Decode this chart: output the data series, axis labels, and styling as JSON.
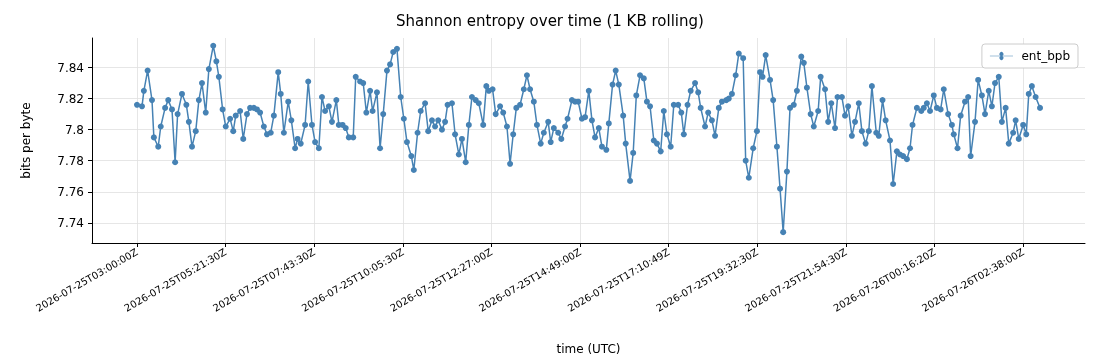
{
  "chart_data": {
    "type": "line",
    "title": "Shannon entropy over time (1 KB rolling)",
    "xlabel": "time (UTC)",
    "ylabel": "bits per byte",
    "x": [
      "2026-07-25T03:00",
      "2026-07-25T03:08",
      "2026-07-25T03:11",
      "2026-07-25T03:17",
      "2026-07-25T03:24",
      "2026-07-25T03:27",
      "2026-07-25T03:34",
      "2026-07-25T03:38",
      "2026-07-25T03:45",
      "2026-07-25T03:50",
      "2026-07-25T03:56",
      "2026-07-25T04:01",
      "2026-07-25T04:05",
      "2026-07-25T04:12",
      "2026-07-25T04:19",
      "2026-07-25T04:23",
      "2026-07-25T04:28",
      "2026-07-25T04:34",
      "2026-07-25T04:39",
      "2026-07-25T04:44",
      "2026-07-25T04:50",
      "2026-07-25T04:55",
      "2026-07-25T05:02",
      "2026-07-25T05:07",
      "2026-07-25T05:11",
      "2026-07-25T05:17",
      "2026-07-25T05:22",
      "2026-07-25T05:29",
      "2026-07-25T05:34",
      "2026-07-25T05:38",
      "2026-07-25T05:45",
      "2026-07-25T05:50",
      "2026-07-25T05:56",
      "2026-07-25T06:01",
      "2026-07-25T06:07",
      "2026-07-25T06:12",
      "2026-07-25T06:17",
      "2026-07-25T06:23",
      "2026-07-25T06:28",
      "2026-07-25T06:34",
      "2026-07-25T06:39",
      "2026-07-25T06:46",
      "2026-07-25T06:50",
      "2026-07-25T06:55",
      "2026-07-25T07:02",
      "2026-07-25T07:07",
      "2026-07-25T07:13",
      "2026-07-25T07:17",
      "2026-07-25T07:22",
      "2026-07-25T07:29",
      "2026-07-25T07:34",
      "2026-07-25T07:40",
      "2026-07-25T07:45",
      "2026-07-25T07:51",
      "2026-07-25T07:56",
      "2026-07-25T08:01",
      "2026-07-25T08:07",
      "2026-07-25T08:12",
      "2026-07-25T08:19",
      "2026-07-25T08:23",
      "2026-07-25T08:29",
      "2026-07-25T08:34",
      "2026-07-25T08:39",
      "2026-07-25T08:46",
      "2026-07-25T08:50",
      "2026-07-25T08:57",
      "2026-07-25T09:02",
      "2026-07-25T09:07",
      "2026-07-25T09:13",
      "2026-07-25T09:17",
      "2026-07-25T09:24",
      "2026-07-25T09:29",
      "2026-07-25T09:34",
      "2026-07-25T09:40",
      "2026-07-25T09:45",
      "2026-07-25T09:50",
      "2026-07-25T09:56",
      "2026-07-25T10:02",
      "2026-07-25T10:07",
      "2026-07-25T10:12",
      "2026-07-25T10:19",
      "2026-07-25T10:23",
      "2026-07-25T10:29",
      "2026-07-25T10:34",
      "2026-07-25T10:41",
      "2026-07-25T10:46",
      "2026-07-25T10:52",
      "2026-07-25T10:57",
      "2026-07-25T11:02",
      "2026-07-25T11:08",
      "2026-07-25T11:13",
      "2026-07-25T11:17",
      "2026-07-25T11:24",
      "2026-07-25T11:29",
      "2026-07-25T11:35",
      "2026-07-25T11:40",
      "2026-07-25T11:46",
      "2026-07-25T11:51",
      "2026-07-25T11:56",
      "2026-07-25T12:02",
      "2026-07-25T12:07",
      "2026-07-25T12:14",
      "2026-07-25T12:19",
      "2026-07-25T12:23",
      "2026-07-25T12:29",
      "2026-07-25T12:34",
      "2026-07-25T12:41",
      "2026-07-25T12:46",
      "2026-07-25T12:52",
      "2026-07-25T12:57",
      "2026-07-25T13:02",
      "2026-07-25T13:07",
      "2026-07-25T13:13",
      "2026-07-25T13:19",
      "2026-07-25T13:24",
      "2026-07-25T13:29",
      "2026-07-25T13:35",
      "2026-07-25T13:40",
      "2026-07-25T13:46",
      "2026-07-25T13:51",
      "2026-07-25T13:58",
      "2026-07-25T14:02",
      "2026-07-25T14:07",
      "2026-07-25T14:14",
      "2026-07-25T14:19",
      "2026-07-25T14:25",
      "2026-07-25T14:29",
      "2026-07-25T14:36",
      "2026-07-25T14:41",
      "2026-07-25T14:46",
      "2026-07-25T14:52",
      "2026-07-25T14:57",
      "2026-07-25T15:03",
      "2026-07-25T15:08",
      "2026-07-25T15:13",
      "2026-07-25T15:19",
      "2026-07-25T15:24",
      "2026-07-25T15:31",
      "2026-07-25T15:35",
      "2026-07-25T15:41",
      "2026-07-25T15:46",
      "2026-07-25T15:51",
      "2026-07-25T15:58",
      "2026-07-25T16:02",
      "2026-07-25T16:09",
      "2026-07-25T16:14",
      "2026-07-25T16:19",
      "2026-07-25T16:25",
      "2026-07-25T16:31",
      "2026-07-25T16:36",
      "2026-07-25T16:41",
      "2026-07-25T16:47",
      "2026-07-25T16:52",
      "2026-07-25T16:58",
      "2026-07-25T17:03",
      "2026-07-25T17:08",
      "2026-07-25T17:14",
      "2026-07-25T17:19",
      "2026-07-25T17:26",
      "2026-07-25T17:31",
      "2026-07-25T17:35",
      "2026-07-25T17:41",
      "2026-07-25T17:46",
      "2026-07-25T17:53",
      "2026-07-25T17:58",
      "2026-07-25T18:02",
      "2026-07-25T18:09",
      "2026-07-25T18:14",
      "2026-07-25T18:20",
      "2026-07-25T18:25",
      "2026-07-25T18:31",
      "2026-07-25T18:36",
      "2026-07-25T18:43",
      "2026-07-25T18:47",
      "2026-07-25T18:52",
      "2026-07-25T18:58",
      "2026-07-25T19:03",
      "2026-07-25T19:10",
      "2026-07-25T19:14",
      "2026-07-25T19:19",
      "2026-07-25T19:26",
      "2026-07-25T19:32",
      "2026-07-25T19:37",
      "2026-07-25T19:41",
      "2026-07-25T19:46",
      "2026-07-25T19:53",
      "2026-07-25T19:58",
      "2026-07-25T20:04",
      "2026-07-25T20:09",
      "2026-07-25T20:14",
      "2026-07-25T20:20",
      "2026-07-25T20:25",
      "2026-07-25T20:31",
      "2026-07-25T20:36",
      "2026-07-25T20:43",
      "2026-07-25T20:47",
      "2026-07-25T20:52",
      "2026-07-25T20:58",
      "2026-07-25T21:03",
      "2026-07-25T21:10",
      "2026-07-25T21:14",
      "2026-07-25T21:21",
      "2026-07-25T21:26",
      "2026-07-25T21:31",
      "2026-07-25T21:37",
      "2026-07-25T21:41",
      "2026-07-25T21:48",
      "2026-07-25T21:53",
      "2026-07-25T21:58",
      "2026-07-25T22:04",
      "2026-07-25T22:09",
      "2026-07-25T22:15",
      "2026-07-25T22:20",
      "2026-07-25T22:26",
      "2026-07-25T22:31",
      "2026-07-25T22:36",
      "2026-07-25T22:43",
      "2026-07-25T22:47",
      "2026-07-25T22:53",
      "2026-07-25T22:58",
      "2026-07-25T23:05",
      "2026-07-25T23:10",
      "2026-07-25T23:16",
      "2026-07-25T23:21",
      "2026-07-25T23:26",
      "2026-07-25T23:32",
      "2026-07-25T23:37",
      "2026-07-25T23:41",
      "2026-07-25T23:48",
      "2026-07-25T23:55",
      "2026-07-25T23:59",
      "2026-07-26T00:04",
      "2026-07-26T00:09",
      "2026-07-26T00:15",
      "2026-07-26T00:20",
      "2026-07-26T00:26",
      "2026-07-26T00:31",
      "2026-07-26T00:38",
      "2026-07-26T00:44",
      "2026-07-26T00:47",
      "2026-07-26T00:53",
      "2026-07-26T00:58",
      "2026-07-26T01:05",
      "2026-07-26T01:10",
      "2026-07-26T01:14",
      "2026-07-26T01:21",
      "2026-07-26T01:26",
      "2026-07-26T01:32",
      "2026-07-26T01:37",
      "2026-07-26T01:43",
      "2026-07-26T01:48",
      "2026-07-26T01:53",
      "2026-07-26T01:59",
      "2026-07-26T02:04",
      "2026-07-26T02:10",
      "2026-07-26T02:15",
      "2026-07-26T02:22",
      "2026-07-26T02:26",
      "2026-07-26T02:31",
      "2026-07-26T02:38",
      "2026-07-26T02:43",
      "2026-07-26T02:47",
      "2026-07-26T02:52",
      "2026-07-26T02:58",
      "2026-07-26T03:05"
    ],
    "series": [
      {
        "name": "ent_bpb",
        "color": "#4682b4",
        "values": [
          7.816,
          7.815,
          7.825,
          7.838,
          7.819,
          7.795,
          7.789,
          7.802,
          7.814,
          7.819,
          7.813,
          7.779,
          7.81,
          7.823,
          7.816,
          7.805,
          7.789,
          7.799,
          7.819,
          7.83,
          7.811,
          7.839,
          7.854,
          7.844,
          7.834,
          7.813,
          7.802,
          7.807,
          7.799,
          7.809,
          7.812,
          7.794,
          7.81,
          7.814,
          7.814,
          7.813,
          7.811,
          7.802,
          7.797,
          7.798,
          7.809,
          7.837,
          7.823,
          7.798,
          7.818,
          7.806,
          7.788,
          7.794,
          7.791,
          7.803,
          7.831,
          7.803,
          7.792,
          7.788,
          7.821,
          7.812,
          7.815,
          7.805,
          7.819,
          7.803,
          7.803,
          7.801,
          7.795,
          7.795,
          7.834,
          7.831,
          7.83,
          7.811,
          7.825,
          7.812,
          7.824,
          7.788,
          7.81,
          7.838,
          7.842,
          7.85,
          7.852,
          7.821,
          7.807,
          7.792,
          7.783,
          7.774,
          7.798,
          7.812,
          7.817,
          7.799,
          7.806,
          7.802,
          7.806,
          7.8,
          7.805,
          7.816,
          7.817,
          7.797,
          7.784,
          7.794,
          7.779,
          7.803,
          7.821,
          7.819,
          7.817,
          7.803,
          7.828,
          7.825,
          7.826,
          7.81,
          7.815,
          7.811,
          7.802,
          7.778,
          7.797,
          7.814,
          7.816,
          7.826,
          7.835,
          7.826,
          7.818,
          7.803,
          7.791,
          7.798,
          7.805,
          7.792,
          7.801,
          7.798,
          7.794,
          7.802,
          7.807,
          7.819,
          7.818,
          7.818,
          7.807,
          7.808,
          7.825,
          7.806,
          7.795,
          7.801,
          7.789,
          7.787,
          7.804,
          7.829,
          7.838,
          7.829,
          7.809,
          7.791,
          7.767,
          7.785,
          7.822,
          7.835,
          7.833,
          7.818,
          7.815,
          7.793,
          7.791,
          7.786,
          7.812,
          7.797,
          7.789,
          7.816,
          7.816,
          7.811,
          7.797,
          7.816,
          7.825,
          7.83,
          7.824,
          7.814,
          7.802,
          7.811,
          7.806,
          7.796,
          7.814,
          7.818,
          7.819,
          7.82,
          7.823,
          7.835,
          7.849,
          7.846,
          7.78,
          7.769,
          7.788,
          7.799,
          7.837,
          7.834,
          7.848,
          7.832,
          7.819,
          7.789,
          7.762,
          7.734,
          7.773,
          7.814,
          7.816,
          7.825,
          7.847,
          7.843,
          7.827,
          7.81,
          7.802,
          7.812,
          7.834,
          7.826,
          7.805,
          7.817,
          7.801,
          7.821,
          7.821,
          7.809,
          7.815,
          7.796,
          7.805,
          7.817,
          7.799,
          7.791,
          7.799,
          7.828,
          7.798,
          7.796,
          7.819,
          7.806,
          7.793,
          7.765,
          7.786,
          7.784,
          7.783,
          7.781,
          7.788,
          7.803,
          7.814,
          7.812,
          7.814,
          7.817,
          7.812,
          7.822,
          7.814,
          7.813,
          7.826,
          7.81,
          7.803,
          7.797,
          7.788,
          7.809,
          7.818,
          7.821,
          7.783,
          7.805,
          7.832,
          7.822,
          7.81,
          7.825,
          7.815,
          7.83,
          7.834,
          7.805,
          7.814,
          7.791,
          7.798,
          7.806,
          7.794,
          7.803,
          7.797,
          7.823,
          7.828,
          7.821,
          7.814
        ]
      }
    ],
    "xlim": [
      "2026-07-25T01:48",
      "2026-07-26T04:17"
    ],
    "xticks": [
      {
        "value": "2026-07-25T03:00:00",
        "label": "2026-07-25T03:00:00Z"
      },
      {
        "value": "2026-07-25T05:21:30",
        "label": "2026-07-25T05:21:30Z"
      },
      {
        "value": "2026-07-25T07:43:30",
        "label": "2026-07-25T07:43:30Z"
      },
      {
        "value": "2026-07-25T10:05:30",
        "label": "2026-07-25T10:05:30Z"
      },
      {
        "value": "2026-07-25T12:27:00",
        "label": "2026-07-25T12:27:00Z"
      },
      {
        "value": "2026-07-25T14:49:00",
        "label": "2026-07-25T14:49:00Z"
      },
      {
        "value": "2026-07-25T17:10:49",
        "label": "2026-07-25T17:10:49Z"
      },
      {
        "value": "2026-07-25T19:32:30",
        "label": "2026-07-25T19:32:30Z"
      },
      {
        "value": "2026-07-25T21:54:30",
        "label": "2026-07-25T21:54:30Z"
      },
      {
        "value": "2026-07-26T00:16:20",
        "label": "2026-07-26T00:16:20Z"
      },
      {
        "value": "2026-07-26T02:38:00",
        "label": "2026-07-26T02:38:00Z"
      }
    ],
    "ylim": [
      7.727,
      7.859
    ],
    "yticks": [
      7.74,
      7.76,
      7.78,
      7.8,
      7.82,
      7.84
    ],
    "grid": true,
    "legend": "top right",
    "marker": "circle",
    "line_style": "solid"
  }
}
